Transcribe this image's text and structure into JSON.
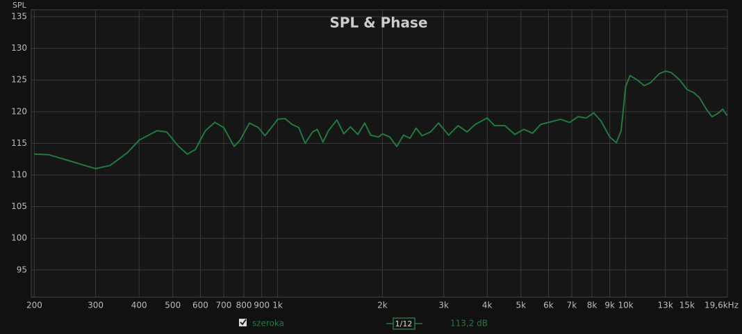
{
  "chart_data": {
    "type": "line",
    "title": "SPL & Phase",
    "y_label": "SPL",
    "xscale": "log",
    "grid": true,
    "xlim": [
      196,
      19600
    ],
    "ylim": [
      90.7,
      136.1
    ],
    "xticks": [
      200,
      300,
      400,
      500,
      600,
      700,
      800,
      900,
      {
        "value": 1000,
        "label": "1k"
      },
      {
        "value": 2000,
        "label": "2k"
      },
      {
        "value": 3000,
        "label": "3k"
      },
      {
        "value": 4000,
        "label": "4k"
      },
      {
        "value": 5000,
        "label": "5k"
      },
      {
        "value": 6000,
        "label": "6k"
      },
      {
        "value": 7000,
        "label": "7k"
      },
      {
        "value": 8000,
        "label": "8k"
      },
      {
        "value": 9000,
        "label": "9k"
      },
      {
        "value": 10000,
        "label": "10k"
      },
      {
        "value": 13000,
        "label": "13k"
      },
      {
        "value": 15000,
        "label": "15k"
      },
      {
        "value": 19600,
        "label": "19,6kHz"
      }
    ],
    "yticks": [
      95,
      100,
      105,
      110,
      115,
      120,
      125,
      130,
      135
    ],
    "x": [
      200,
      220,
      250,
      300,
      330,
      370,
      400,
      450,
      480,
      520,
      550,
      580,
      620,
      660,
      700,
      750,
      780,
      830,
      880,
      920,
      960,
      1000,
      1050,
      1100,
      1150,
      1200,
      1260,
      1300,
      1350,
      1400,
      1480,
      1550,
      1620,
      1700,
      1780,
      1850,
      1950,
      2000,
      2100,
      2200,
      2300,
      2400,
      2500,
      2600,
      2750,
      2900,
      3100,
      3300,
      3500,
      3700,
      4000,
      4200,
      4500,
      4800,
      5100,
      5400,
      5700,
      6100,
      6500,
      6900,
      7300,
      7700,
      8100,
      8500,
      9000,
      9400,
      9700,
      10000,
      10300,
      10800,
      11300,
      11800,
      12500,
      13000,
      13500,
      14300,
      15000,
      15700,
      16300,
      17000,
      17700,
      18500,
      19000,
      19550
    ],
    "series": [
      {
        "name": "szeroka",
        "color": "#1f7a40",
        "values": [
          113.3,
          113.2,
          112.3,
          111.0,
          111.5,
          113.5,
          115.5,
          117.0,
          116.8,
          114.5,
          113.3,
          114.0,
          117.0,
          118.3,
          117.5,
          114.5,
          115.5,
          118.2,
          117.5,
          116.2,
          117.5,
          118.8,
          118.9,
          118.0,
          117.5,
          115.0,
          116.8,
          117.2,
          115.2,
          117.0,
          118.7,
          116.5,
          117.6,
          116.4,
          118.2,
          116.3,
          116.0,
          116.5,
          116.0,
          114.5,
          116.3,
          115.8,
          117.4,
          116.2,
          116.8,
          118.2,
          116.3,
          117.8,
          116.8,
          118.0,
          119.0,
          117.8,
          117.8,
          116.4,
          117.2,
          116.6,
          118.0,
          118.4,
          118.8,
          118.3,
          119.2,
          119.0,
          119.8,
          118.5,
          116.0,
          115.1,
          117.0,
          124.0,
          125.7,
          125.0,
          124.1,
          124.6,
          126.0,
          126.4,
          126.2,
          125.0,
          123.5,
          123.0,
          122.2,
          120.5,
          119.2,
          119.8,
          120.4,
          119.4
        ]
      }
    ],
    "legend": {
      "smoothing": "1/12",
      "level": "113,2 dB"
    }
  }
}
